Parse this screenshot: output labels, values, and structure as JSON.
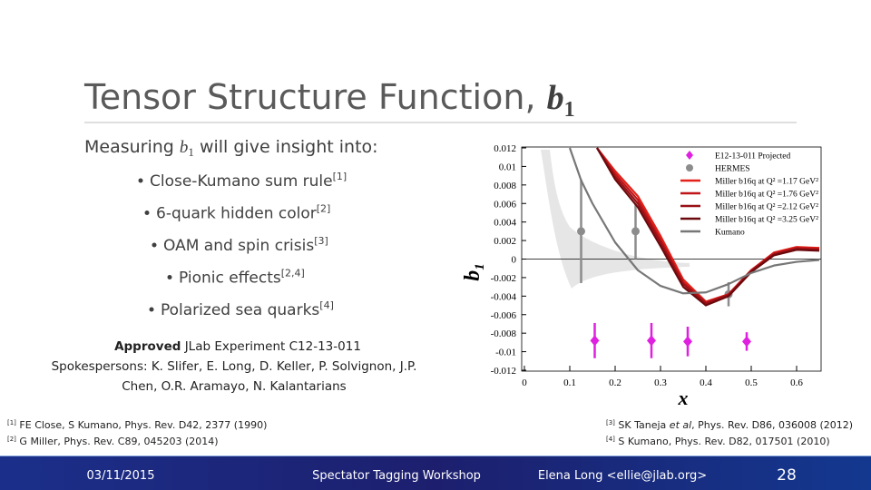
{
  "slide": {
    "title": {
      "text": "Tensor Structure Function,",
      "math": "b",
      "sub": "1"
    },
    "lead": {
      "before": "Measuring",
      "math": "b",
      "sub": "1",
      "after": "will give insight into:"
    },
    "bullets": [
      {
        "text": "Close-Kumano sum rule",
        "ref": "[1]"
      },
      {
        "text": "6-quark hidden color",
        "ref": "[2]"
      },
      {
        "text": "OAM and spin crisis",
        "ref": "[3]"
      },
      {
        "text": "Pionic effects",
        "ref": "[2,4]"
      },
      {
        "text": "Polarized sea quarks",
        "ref": "[4]"
      }
    ],
    "approved": {
      "bold": "Approved",
      "rest": "JLab Experiment C12-13-011",
      "line2": "Spokespersons: K. Slifer, E. Long, D. Keller, P. Solvignon, J.P.",
      "line3": "Chen, O.R. Aramayo, N. Kalantarians"
    },
    "references": [
      {
        "mark": "[1]",
        "text": "FE Close, S Kumano, Phys. Rev. D42, 2377 (1990)"
      },
      {
        "mark": "[2]",
        "text": "G Miller, Phys. Rev. C89, 045203 (2014)"
      },
      {
        "mark": "[3]",
        "before": "SK Taneja",
        "italic": "et al",
        "text": ", Phys. Rev. D86, 036008 (2012)"
      },
      {
        "mark": "[4]",
        "text": "S Kumano, Phys. Rev. D82, 017501 (2010)"
      }
    ],
    "footer": {
      "date": "03/11/2015",
      "event": "Spectator Tagging Workshop",
      "author": "Elena Long <ellie@jlab.org>",
      "page": "28"
    }
  },
  "chart_data": {
    "type": "line",
    "ylabel": {
      "text": "b",
      "sub": "1"
    },
    "xlabel": "x",
    "xlim": [
      0,
      0.65
    ],
    "xticks": [
      0,
      0.1,
      0.2,
      0.3,
      0.4,
      0.5,
      0.6
    ],
    "ylim": [
      -0.012,
      0.012
    ],
    "yticks": [
      0.012,
      0.01,
      0.008,
      0.006,
      0.004,
      0.002,
      0,
      -0.002,
      -0.004,
      -0.006,
      -0.008,
      -0.01,
      -0.012
    ],
    "legend": "upper right",
    "series": [
      {
        "name": "E12-13-011 Projected",
        "color": "#e020e0",
        "marker": "diamond",
        "x": [
          0.155,
          0.28,
          0.36,
          0.49
        ],
        "values": [
          -0.0088,
          -0.0088,
          -0.0089,
          -0.0089
        ],
        "errors": [
          0.0019,
          0.0019,
          0.0016,
          0.001
        ]
      },
      {
        "name": "HERMES",
        "color": "#8c8c8c",
        "marker": "circle",
        "x": [
          0.125,
          0.245,
          0.45
        ],
        "values": [
          0.003,
          0.003,
          -0.0038
        ],
        "errors": [
          0.0056,
          0.003,
          0.0013
        ]
      },
      {
        "name": "Miller b16q at Q² =1.17 GeV²",
        "color": "#e32119",
        "x": [
          0.16,
          0.2,
          0.25,
          0.3,
          0.35,
          0.4,
          0.45,
          0.5,
          0.55,
          0.6,
          0.65
        ],
        "values": [
          0.012,
          0.0095,
          0.0068,
          0.0025,
          -0.0022,
          -0.0046,
          -0.0038,
          -0.0012,
          0.0007,
          0.0013,
          0.0012
        ]
      },
      {
        "name": "Miller b16q at Q² =1.76 GeV²",
        "color": "#c01418",
        "x": [
          0.16,
          0.2,
          0.25,
          0.3,
          0.35,
          0.4,
          0.45,
          0.5,
          0.55,
          0.6,
          0.65
        ],
        "values": [
          0.012,
          0.0092,
          0.0064,
          0.0021,
          -0.0025,
          -0.0047,
          -0.0038,
          -0.0012,
          0.0006,
          0.0012,
          0.0011
        ]
      },
      {
        "name": "Miller b16q at Q² =2.12 GeV²",
        "color": "#981015",
        "x": [
          0.16,
          0.2,
          0.25,
          0.3,
          0.35,
          0.4,
          0.45,
          0.5,
          0.55,
          0.6,
          0.65
        ],
        "values": [
          0.012,
          0.0089,
          0.006,
          0.0018,
          -0.0027,
          -0.0048,
          -0.0039,
          -0.0013,
          0.0005,
          0.0011,
          0.001
        ]
      },
      {
        "name": "Miller b16q at Q² =3.25 GeV²",
        "color": "#6b0a0e",
        "x": [
          0.16,
          0.2,
          0.25,
          0.3,
          0.35,
          0.4,
          0.45,
          0.5,
          0.55,
          0.6,
          0.65
        ],
        "values": [
          0.012,
          0.0086,
          0.0056,
          0.0014,
          -0.003,
          -0.005,
          -0.004,
          -0.0014,
          0.0004,
          0.001,
          0.0009
        ]
      },
      {
        "name": "Kumano",
        "color": "#777777",
        "x": [
          0.1,
          0.125,
          0.15,
          0.2,
          0.25,
          0.3,
          0.35,
          0.4,
          0.45,
          0.5,
          0.55,
          0.6,
          0.65
        ],
        "values": [
          0.012,
          0.0085,
          0.006,
          0.0018,
          -0.0012,
          -0.0029,
          -0.0037,
          -0.0036,
          -0.0027,
          -0.0015,
          -0.0007,
          -0.0003,
          -0.0001
        ]
      }
    ]
  }
}
